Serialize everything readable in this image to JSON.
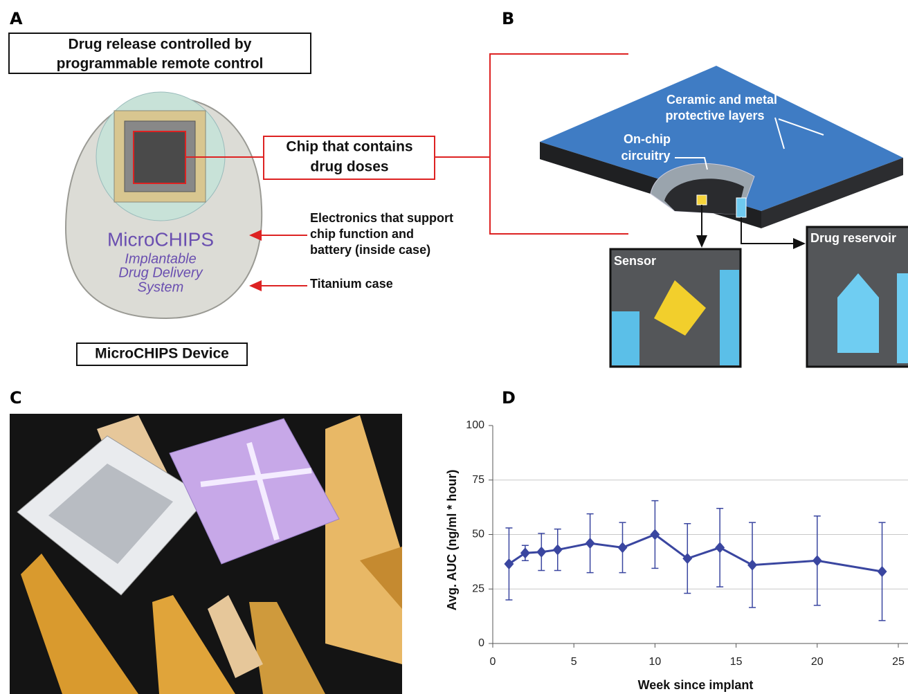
{
  "panels": {
    "a": {
      "label": "A",
      "remote_box": [
        "Drug release controlled by",
        "programmable remote control"
      ],
      "chip_box": [
        "Chip that contains",
        "drug doses"
      ],
      "electronics": [
        "Electronics that support",
        "chip function and",
        "battery (inside case)"
      ],
      "case": "Titanium case",
      "brand": "MicroCHIPS",
      "brand_sub": [
        "Implantable",
        "Drug Delivery",
        "System"
      ],
      "caption": "MicroCHIPS Device"
    },
    "b": {
      "label": "B",
      "layers": [
        "Ceramic and metal",
        "protective layers"
      ],
      "circuitry": [
        "On-chip",
        "circuitry"
      ],
      "sensor": "Sensor",
      "reservoir": "Drug reservoir"
    },
    "c": {
      "label": "C"
    },
    "d": {
      "label": "D"
    }
  },
  "chart_data": {
    "type": "line",
    "x_label": "Week since implant",
    "y_label": "Avg. AUC (ng/ml * hour)",
    "x": [
      1,
      2,
      3,
      4,
      6,
      8,
      10,
      12,
      14,
      16,
      20,
      24
    ],
    "series": [
      {
        "color": "#3a46a0",
        "values": [
          36.5,
          41.5,
          42,
          43,
          46,
          44,
          50,
          39,
          44,
          36,
          38,
          33
        ],
        "errors": [
          16.5,
          3.5,
          8.5,
          9.5,
          13.5,
          11.5,
          15.5,
          16,
          18,
          19.5,
          20.5,
          22.5
        ]
      }
    ],
    "xlim": [
      0,
      25
    ],
    "xticks": [
      0,
      5,
      10,
      15,
      20,
      25
    ],
    "ylim": [
      0,
      100
    ],
    "yticks": [
      0,
      25,
      50,
      75,
      100
    ],
    "grid": true
  }
}
